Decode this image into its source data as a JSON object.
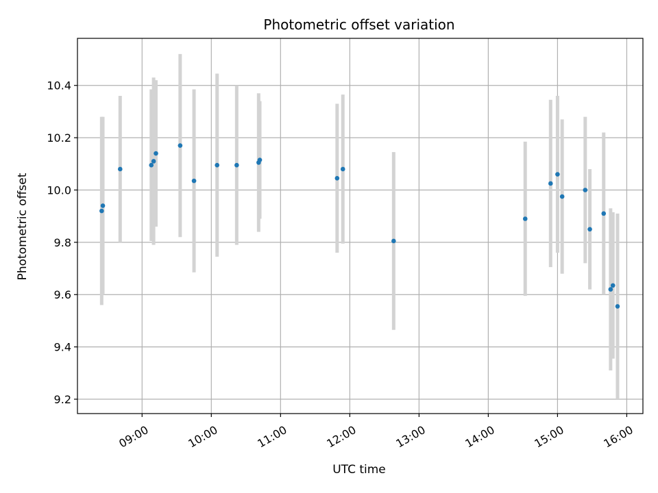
{
  "chart_data": {
    "type": "scatter",
    "title": "Photometric offset variation",
    "xlabel": "UTC time",
    "ylabel": "Photometric offset",
    "x_axis_kind": "time",
    "xlim": [
      "08:04",
      "16:14"
    ],
    "ylim": [
      9.145,
      10.58
    ],
    "grid": true,
    "x_ticks": [
      "09:00",
      "10:00",
      "11:00",
      "12:00",
      "13:00",
      "14:00",
      "15:00",
      "16:00"
    ],
    "y_ticks": [
      9.2,
      9.4,
      9.6,
      9.8,
      10.0,
      10.2,
      10.4
    ],
    "y_tick_labels": [
      "9.2",
      "9.4",
      "9.6",
      "9.8",
      "10.0",
      "10.2",
      "10.4"
    ],
    "colors": {
      "point": "#1f77b4",
      "errorbar": "#d3d3d3",
      "grid": "#b0b0b0"
    },
    "points": [
      {
        "x": "08:25",
        "y": 9.92,
        "err": 0.36
      },
      {
        "x": "08:26",
        "y": 9.94,
        "err": 0.34
      },
      {
        "x": "08:41",
        "y": 10.08,
        "err": 0.28
      },
      {
        "x": "09:08",
        "y": 10.095,
        "err": 0.29
      },
      {
        "x": "09:10",
        "y": 10.11,
        "err": 0.32
      },
      {
        "x": "09:12",
        "y": 10.14,
        "err": 0.28
      },
      {
        "x": "09:33",
        "y": 10.17,
        "err": 0.35
      },
      {
        "x": "09:45",
        "y": 10.035,
        "err": 0.35
      },
      {
        "x": "10:05",
        "y": 10.095,
        "err": 0.35
      },
      {
        "x": "10:22",
        "y": 10.095,
        "err": 0.305
      },
      {
        "x": "10:41",
        "y": 10.105,
        "err": 0.265
      },
      {
        "x": "10:42",
        "y": 10.115,
        "err": 0.225
      },
      {
        "x": "11:49",
        "y": 10.045,
        "err": 0.285
      },
      {
        "x": "11:54",
        "y": 10.08,
        "err": 0.285
      },
      {
        "x": "12:38",
        "y": 9.805,
        "err": 0.34
      },
      {
        "x": "14:32",
        "y": 9.89,
        "err": 0.295
      },
      {
        "x": "14:54",
        "y": 10.025,
        "err": 0.32
      },
      {
        "x": "15:00",
        "y": 10.06,
        "err": 0.3
      },
      {
        "x": "15:04",
        "y": 9.975,
        "err": 0.295
      },
      {
        "x": "15:24",
        "y": 10.0,
        "err": 0.28
      },
      {
        "x": "15:28",
        "y": 9.85,
        "err": 0.23
      },
      {
        "x": "15:40",
        "y": 9.91,
        "err": 0.31
      },
      {
        "x": "15:46",
        "y": 9.62,
        "err": 0.31
      },
      {
        "x": "15:48",
        "y": 9.635,
        "err": 0.28
      },
      {
        "x": "15:52",
        "y": 9.555,
        "err": 0.355
      }
    ]
  }
}
